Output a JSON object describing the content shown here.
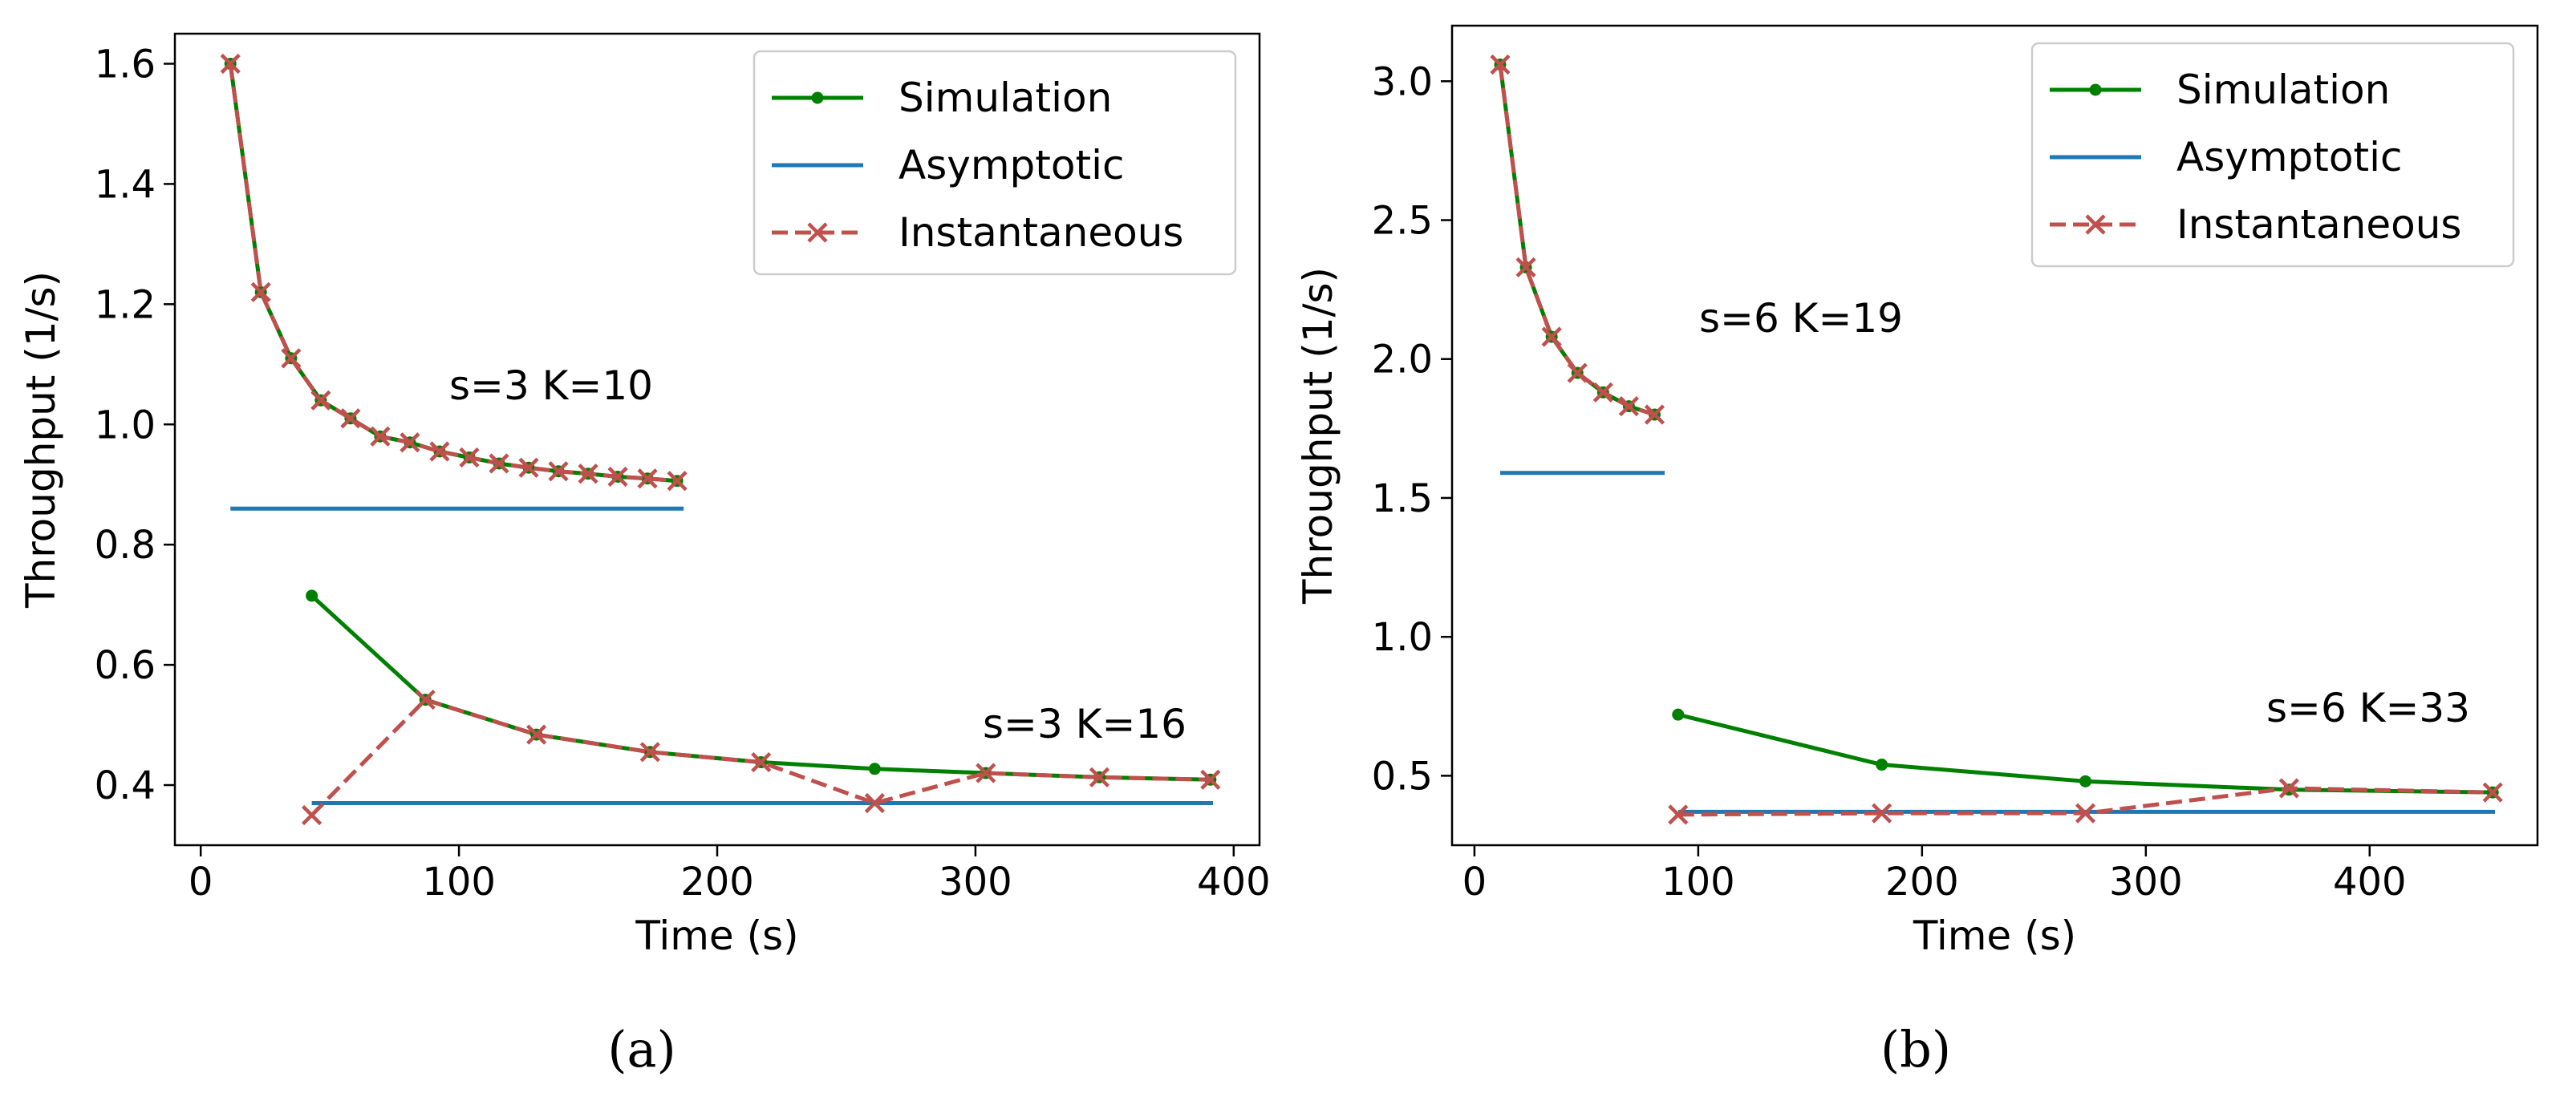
{
  "colors": {
    "simulation": "#008000",
    "asymptotic": "#1f77b4",
    "instantaneous": "#c0504d",
    "axis": "#000000"
  },
  "legend_position": "upper right",
  "chart_data": [
    {
      "type": "line",
      "caption": "(a)",
      "xlabel": "Time (s)",
      "ylabel": "Throughput (1/s)",
      "xlim": [
        -10,
        410
      ],
      "ylim": [
        0.3,
        1.65
      ],
      "xticks": [
        0,
        100,
        200,
        300,
        400
      ],
      "yticks": [
        0.4,
        0.6,
        0.8,
        1.0,
        1.2,
        1.4,
        1.6
      ],
      "xtick_labels": [
        "0",
        "100",
        "200",
        "300",
        "400"
      ],
      "ytick_labels": [
        "0.4",
        "0.6",
        "0.8",
        "1.0",
        "1.2",
        "1.4",
        "1.6"
      ],
      "legend": [
        "Simulation",
        "Asymptotic",
        "Instantaneous"
      ],
      "annotations": [
        {
          "text": "s=3 K=10",
          "x": 140,
          "y": 1.06
        },
        {
          "text": "s=3 K=16",
          "x": 340,
          "y": 0.9
        }
      ],
      "groups": [
        {
          "label": "s=3 K=10",
          "simulation": {
            "x": [
              11.5,
              23.3,
              35,
              46.5,
              58,
              69.5,
              81,
              92.5,
              104,
              115.5,
              127,
              138.5,
              150,
              161.5,
              173,
              184.5
            ],
            "y": [
              1.6,
              1.22,
              1.11,
              1.04,
              1.01,
              0.98,
              0.97,
              0.955,
              0.945,
              0.935,
              0.928,
              0.922,
              0.918,
              0.913,
              0.91,
              0.906
            ]
          },
          "instantaneous": {
            "x": [
              11.5,
              23.3,
              35,
              46.5,
              58,
              69.5,
              81,
              92.5,
              104,
              115.5,
              127,
              138.5,
              150,
              161.5,
              173,
              184.5
            ],
            "y": [
              1.6,
              1.22,
              1.11,
              1.04,
              1.01,
              0.98,
              0.97,
              0.955,
              0.945,
              0.935,
              0.928,
              0.922,
              0.918,
              0.913,
              0.91,
              0.906
            ]
          },
          "asymptotic": {
            "x": [
              11.5,
              187
            ],
            "y": [
              0.86,
              0.86
            ]
          }
        },
        {
          "label": "s=3 K=16",
          "simulation": {
            "x": [
              43,
              87,
              130,
              174,
              217,
              261,
              304,
              348,
              391
            ],
            "y": [
              0.715,
              0.542,
              0.484,
              0.455,
              0.438,
              0.427,
              0.42,
              0.413,
              0.409
            ]
          },
          "instantaneous": {
            "x": [
              43,
              87,
              130,
              174,
              217,
              261,
              304,
              348,
              391
            ],
            "y": [
              0.35,
              0.542,
              0.484,
              0.455,
              0.438,
              0.37,
              0.42,
              0.413,
              0.409
            ]
          },
          "asymptotic": {
            "x": [
              43,
              392
            ],
            "y": [
              0.37,
              0.37
            ]
          }
        }
      ]
    },
    {
      "type": "line",
      "caption": "(b)",
      "xlabel": "Time (s)",
      "ylabel": "Throughput (1/s)",
      "xlim": [
        -10,
        475
      ],
      "ylim": [
        0.25,
        3.2
      ],
      "xticks": [
        0,
        100,
        200,
        300,
        400
      ],
      "yticks": [
        0.5,
        1.0,
        1.5,
        2.0,
        2.5,
        3.0
      ],
      "xtick_labels": [
        "0",
        "100",
        "200",
        "300",
        "400"
      ],
      "ytick_labels": [
        "0.5",
        "1.0",
        "1.5",
        "2.0",
        "2.5",
        "3.0"
      ],
      "legend": [
        "Simulation",
        "Asymptotic",
        "Instantaneous"
      ],
      "annotations": [
        {
          "text": "s=6 K=19",
          "x": 100,
          "y": 2.1
        },
        {
          "text": "s=6 K=33",
          "x": 350,
          "y": 0.7
        }
      ],
      "groups": [
        {
          "label": "s=6 K=19",
          "simulation": {
            "x": [
              11.5,
              23,
              34.5,
              46,
              57.5,
              69,
              80.5
            ],
            "y": [
              3.06,
              2.33,
              2.08,
              1.95,
              1.88,
              1.83,
              1.8
            ]
          },
          "instantaneous": {
            "x": [
              11.5,
              23,
              34.5,
              46,
              57.5,
              69,
              80.5
            ],
            "y": [
              3.06,
              2.33,
              2.08,
              1.95,
              1.88,
              1.83,
              1.8
            ]
          },
          "asymptotic": {
            "x": [
              11.5,
              85
            ],
            "y": [
              1.59,
              1.59
            ]
          }
        },
        {
          "label": "s=6 K=33",
          "simulation": {
            "x": [
              91,
              182,
              273,
              364,
              455
            ],
            "y": [
              0.72,
              0.54,
              0.48,
              0.45,
              0.44
            ]
          },
          "instantaneous": {
            "x": [
              91,
              182,
              273,
              364,
              455
            ],
            "y": [
              0.36,
              0.365,
              0.365,
              0.455,
              0.44
            ]
          },
          "asymptotic": {
            "x": [
              91,
              456
            ],
            "y": [
              0.37,
              0.37
            ]
          }
        }
      ]
    }
  ]
}
